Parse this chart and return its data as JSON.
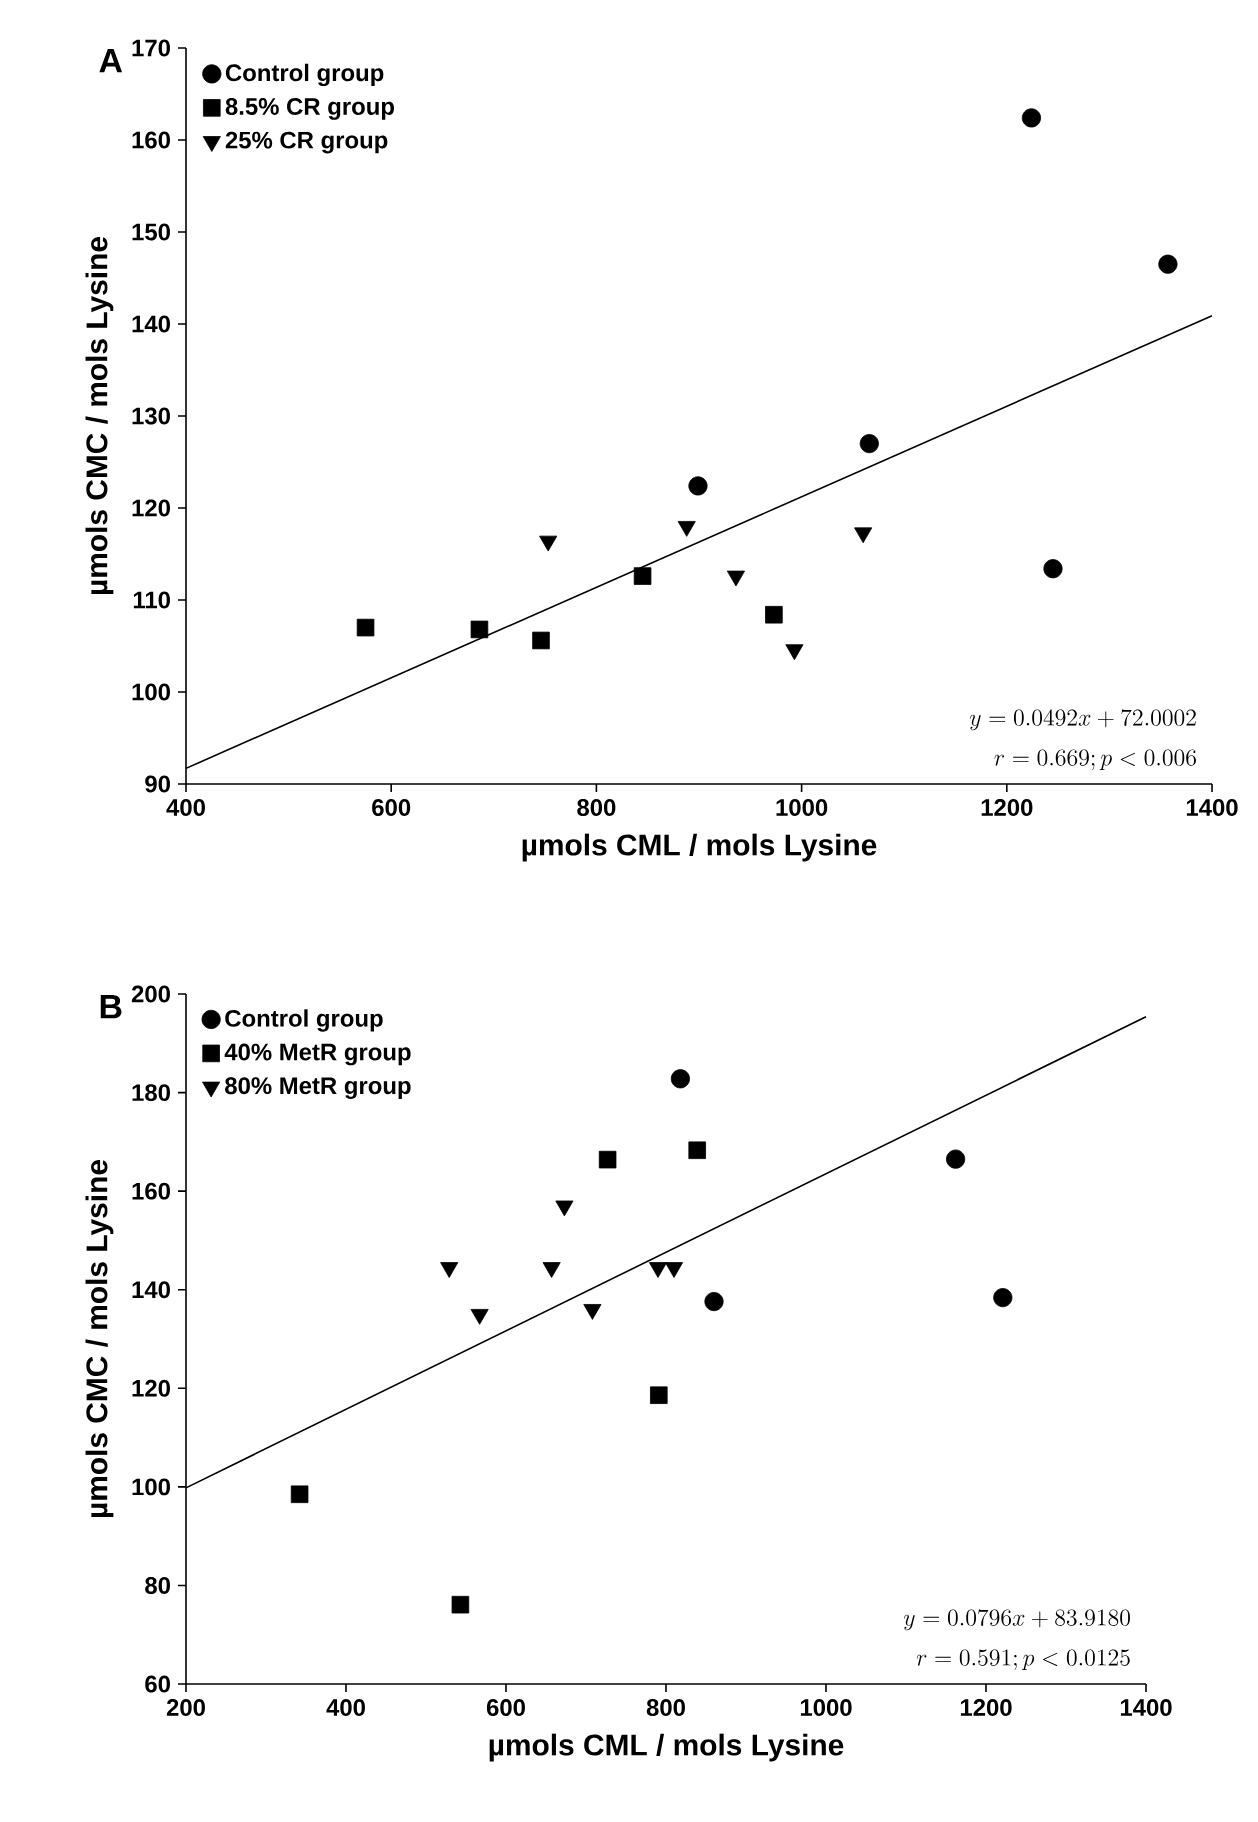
{
  "chart_data": [
    {
      "type": "scatter",
      "xlabel": "µmols CML / mols Lysine",
      "ylabel": "µmols CMC / mols Lysine",
      "annotations": [
        "A",
        "y=0.0492x+72.0002",
        "r=0.669; p<0.006"
      ],
      "xlim": [
        400,
        1400
      ],
      "xticks": [
        400,
        600,
        800,
        1000,
        1200,
        1400
      ],
      "ylim": [
        90,
        170
      ],
      "yticks": [
        90,
        100,
        110,
        120,
        130,
        140,
        150,
        160,
        170
      ],
      "legend": "top left",
      "grid": false,
      "series": [
        {
          "name": "Control group",
          "color": "#000000",
          "marker": "circle",
          "x": [
            1224,
            1357,
            899,
            1066,
            1245
          ],
          "values": [
            162.4,
            146.5,
            122.4,
            127,
            113.4
          ]
        },
        {
          "name": "8.5% CR group",
          "color": "#000000",
          "marker": "square",
          "x": [
            575,
            686,
            746,
            845,
            973
          ],
          "values": [
            107,
            106.8,
            105.6,
            112.6,
            108.4
          ]
        },
        {
          "name": "25% CR group",
          "color": "#000000",
          "marker": "triangle",
          "x": [
            753,
            888,
            936,
            993,
            1060
          ],
          "values": [
            116.4,
            118,
            112.6,
            104.6,
            117.3
          ]
        },
        {
          "type": "line",
          "color": "#000000",
          "marker": "none",
          "x": [
            400,
            1400
          ],
          "values": [
            91.7,
            140.9
          ]
        }
      ]
    },
    {
      "type": "scatter",
      "xlabel": "µmols CML / mols Lysine",
      "ylabel": "µmols CMC / mols Lysine",
      "annotations": [
        "B",
        "y=0.0796x+83.9180",
        "r=0.591; p<0.0125"
      ],
      "xlim": [
        200,
        1400
      ],
      "xticks": [
        200,
        400,
        600,
        800,
        1000,
        1200,
        1400
      ],
      "ylim": [
        60,
        200
      ],
      "yticks": [
        60,
        80,
        100,
        120,
        140,
        160,
        180,
        200
      ],
      "legend": "top left",
      "grid": false,
      "series": [
        {
          "name": "Control group",
          "color": "#000000",
          "marker": "circle",
          "x": [
            818,
            1162,
            860,
            1221
          ],
          "values": [
            182.8,
            166.5,
            137.6,
            138.4
          ]
        },
        {
          "name": "40% MetR group",
          "color": "#000000",
          "marker": "square",
          "x": [
            727,
            839,
            791,
            342,
            543
          ],
          "values": [
            166.4,
            168.3,
            118.6,
            98.5,
            76.1
          ]
        },
        {
          "name": "80% MetR group",
          "color": "#000000",
          "marker": "triangle",
          "x": [
            529,
            567,
            673,
            657,
            708,
            790,
            810
          ],
          "values": [
            144.5,
            135,
            157,
            144.5,
            136,
            144.5,
            144.5
          ]
        },
        {
          "type": "line",
          "color": "#000000",
          "marker": "none",
          "x": [
            200,
            1400
          ],
          "values": [
            99.8,
            195.4
          ]
        }
      ]
    }
  ]
}
